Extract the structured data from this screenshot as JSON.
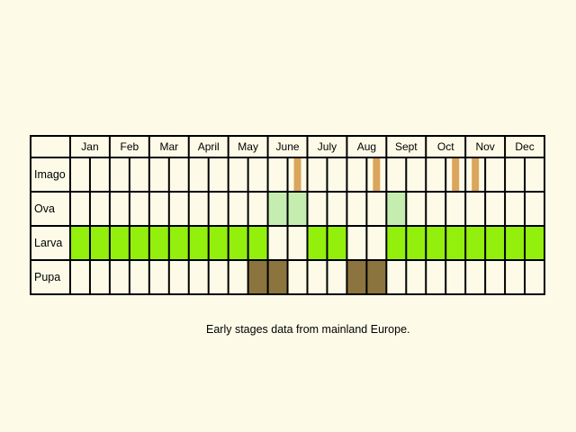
{
  "months": [
    "Jan",
    "Feb",
    "Mar",
    "April",
    "May",
    "June",
    "July",
    "Aug",
    "Sept",
    "Oct",
    "Nov",
    "Dec"
  ],
  "caption": "Early stages data from mainland Europe.",
  "colors": {
    "background": "#fdfbe8",
    "grid": "#000000",
    "imago": "#dba55c",
    "ova": "#c5edb0",
    "larva": "#93ef0c",
    "pupa": "#8c743f"
  },
  "rows": [
    {
      "label": "Imago",
      "color": "#dba55c",
      "half_months": [
        11,
        15,
        19,
        20
      ],
      "note": "thin markers"
    },
    {
      "label": "Ova",
      "color": "#c5edb0",
      "half_months": [
        10,
        11,
        16
      ]
    },
    {
      "label": "Larva",
      "color": "#93ef0c",
      "half_months": [
        0,
        1,
        2,
        3,
        4,
        5,
        6,
        7,
        8,
        9,
        12,
        13,
        16,
        17,
        18,
        19,
        20,
        21,
        22,
        23
      ]
    },
    {
      "label": "Pupa",
      "color": "#8c743f",
      "half_months": [
        9,
        10,
        14,
        15
      ]
    }
  ]
}
